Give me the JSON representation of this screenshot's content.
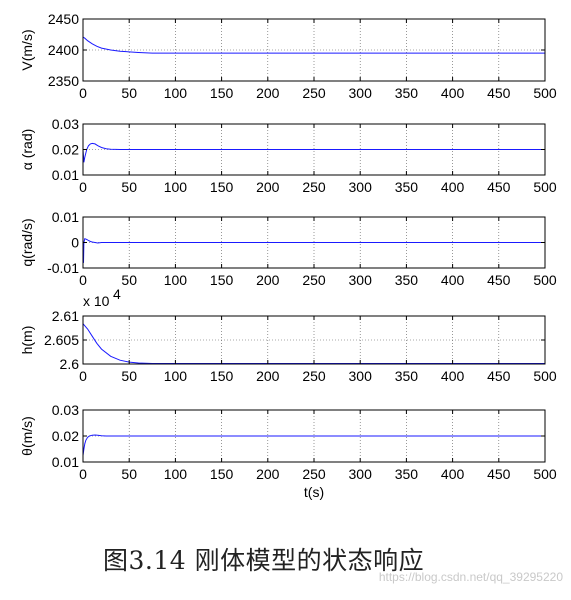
{
  "caption": "图3.14 刚体模型的状态响应",
  "watermark": "https://blog.csdn.net/qq_39295220",
  "chart_data": [
    {
      "type": "line",
      "ylabel": "V(m/s)",
      "xlim": [
        0,
        500
      ],
      "ylim": [
        2350,
        2450
      ],
      "xticks": [
        0,
        50,
        100,
        150,
        200,
        250,
        300,
        350,
        400,
        450,
        500
      ],
      "xtick_labels": [
        "0",
        "50",
        "100",
        "150",
        "200",
        "250",
        "300",
        "350",
        "400",
        "450",
        "500"
      ],
      "yticks": [
        2350,
        2400,
        2450
      ],
      "ytick_labels": [
        "2350",
        "2400",
        "2450"
      ],
      "grid": true,
      "series": [
        {
          "color": "#1a1aff",
          "x": [
            0,
            2,
            5,
            10,
            15,
            20,
            30,
            40,
            50,
            60,
            75,
            100,
            200,
            300,
            400,
            500
          ],
          "y": [
            2421,
            2419,
            2415,
            2410,
            2406,
            2403,
            2400,
            2398,
            2397,
            2396,
            2395,
            2395,
            2395,
            2395,
            2395,
            2395
          ]
        }
      ]
    },
    {
      "type": "line",
      "ylabel": "α (rad)",
      "xlim": [
        0,
        500
      ],
      "ylim": [
        0.01,
        0.03
      ],
      "xticks": [
        0,
        50,
        100,
        150,
        200,
        250,
        300,
        350,
        400,
        450,
        500
      ],
      "xtick_labels": [
        "0",
        "50",
        "100",
        "150",
        "200",
        "250",
        "300",
        "350",
        "400",
        "450",
        "500"
      ],
      "yticks": [
        0.01,
        0.02,
        0.03
      ],
      "ytick_labels": [
        "0.01",
        "0.02",
        "0.03"
      ],
      "grid": true,
      "series": [
        {
          "color": "#1a1aff",
          "x": [
            0,
            1,
            2,
            4,
            6,
            8,
            10,
            13,
            16,
            20,
            25,
            30,
            40,
            100,
            200,
            300,
            400,
            500
          ],
          "y": [
            0.02,
            0.015,
            0.017,
            0.02,
            0.0215,
            0.0222,
            0.0224,
            0.0222,
            0.0215,
            0.0208,
            0.0203,
            0.0201,
            0.02,
            0.02,
            0.02,
            0.02,
            0.02,
            0.02
          ]
        }
      ]
    },
    {
      "type": "line",
      "ylabel": "q(rad/s)",
      "xlim": [
        0,
        500
      ],
      "ylim": [
        -0.01,
        0.01
      ],
      "xticks": [
        0,
        50,
        100,
        150,
        200,
        250,
        300,
        350,
        400,
        450,
        500
      ],
      "xtick_labels": [
        "0",
        "50",
        "100",
        "150",
        "200",
        "250",
        "300",
        "350",
        "400",
        "450",
        "500"
      ],
      "yticks": [
        -0.01,
        0,
        0.01
      ],
      "ytick_labels": [
        "-0.01",
        "0",
        "0.01"
      ],
      "grid": true,
      "series": [
        {
          "color": "#1a1aff",
          "x": [
            0,
            0.5,
            1,
            2,
            4,
            6,
            8,
            10,
            13,
            16,
            20,
            30,
            100,
            200,
            300,
            400,
            500
          ],
          "y": [
            0,
            -0.008,
            0,
            0.0015,
            0.0012,
            0.0008,
            0.0004,
            0.0002,
            0,
            -0.0002,
            0,
            0,
            0,
            0,
            0,
            0,
            0
          ]
        }
      ]
    },
    {
      "type": "line",
      "ylabel": "h(m)",
      "multiplier": "x 10",
      "multiplier_exp": "4",
      "xlim": [
        0,
        500
      ],
      "ylim": [
        2.6,
        2.61
      ],
      "xticks": [
        0,
        50,
        100,
        150,
        200,
        250,
        300,
        350,
        400,
        450,
        500
      ],
      "xtick_labels": [
        "0",
        "50",
        "100",
        "150",
        "200",
        "250",
        "300",
        "350",
        "400",
        "450",
        "500"
      ],
      "yticks": [
        2.6,
        2.605,
        2.61
      ],
      "ytick_labels": [
        "2.6",
        "2.605",
        "2.61"
      ],
      "grid": true,
      "series": [
        {
          "color": "#1a1aff",
          "x": [
            0,
            5,
            10,
            15,
            20,
            30,
            40,
            50,
            60,
            75,
            100,
            200,
            300,
            400,
            500
          ],
          "y": [
            2.6084,
            2.6073,
            2.6058,
            2.6043,
            2.6031,
            2.6016,
            2.6008,
            2.6004,
            2.6002,
            2.6001,
            2.6001,
            2.6001,
            2.6001,
            2.6001,
            2.6001
          ]
        }
      ]
    },
    {
      "type": "line",
      "ylabel": "θ(m/s)",
      "xlabel": "t(s)",
      "xlim": [
        0,
        500
      ],
      "ylim": [
        0.01,
        0.03
      ],
      "xticks": [
        0,
        50,
        100,
        150,
        200,
        250,
        300,
        350,
        400,
        450,
        500
      ],
      "xtick_labels": [
        "0",
        "50",
        "100",
        "150",
        "200",
        "250",
        "300",
        "350",
        "400",
        "450",
        "500"
      ],
      "yticks": [
        0.01,
        0.02,
        0.03
      ],
      "ytick_labels": [
        "0.01",
        "0.02",
        "0.03"
      ],
      "grid": true,
      "series": [
        {
          "color": "#1a1aff",
          "x": [
            0,
            1,
            2,
            3,
            5,
            7,
            10,
            13,
            16,
            20,
            25,
            30,
            100,
            200,
            300,
            400,
            500
          ],
          "y": [
            0.0125,
            0.015,
            0.017,
            0.0183,
            0.0195,
            0.02,
            0.0203,
            0.0204,
            0.0203,
            0.0201,
            0.02,
            0.02,
            0.02,
            0.02,
            0.02,
            0.02,
            0.02
          ]
        }
      ]
    }
  ]
}
